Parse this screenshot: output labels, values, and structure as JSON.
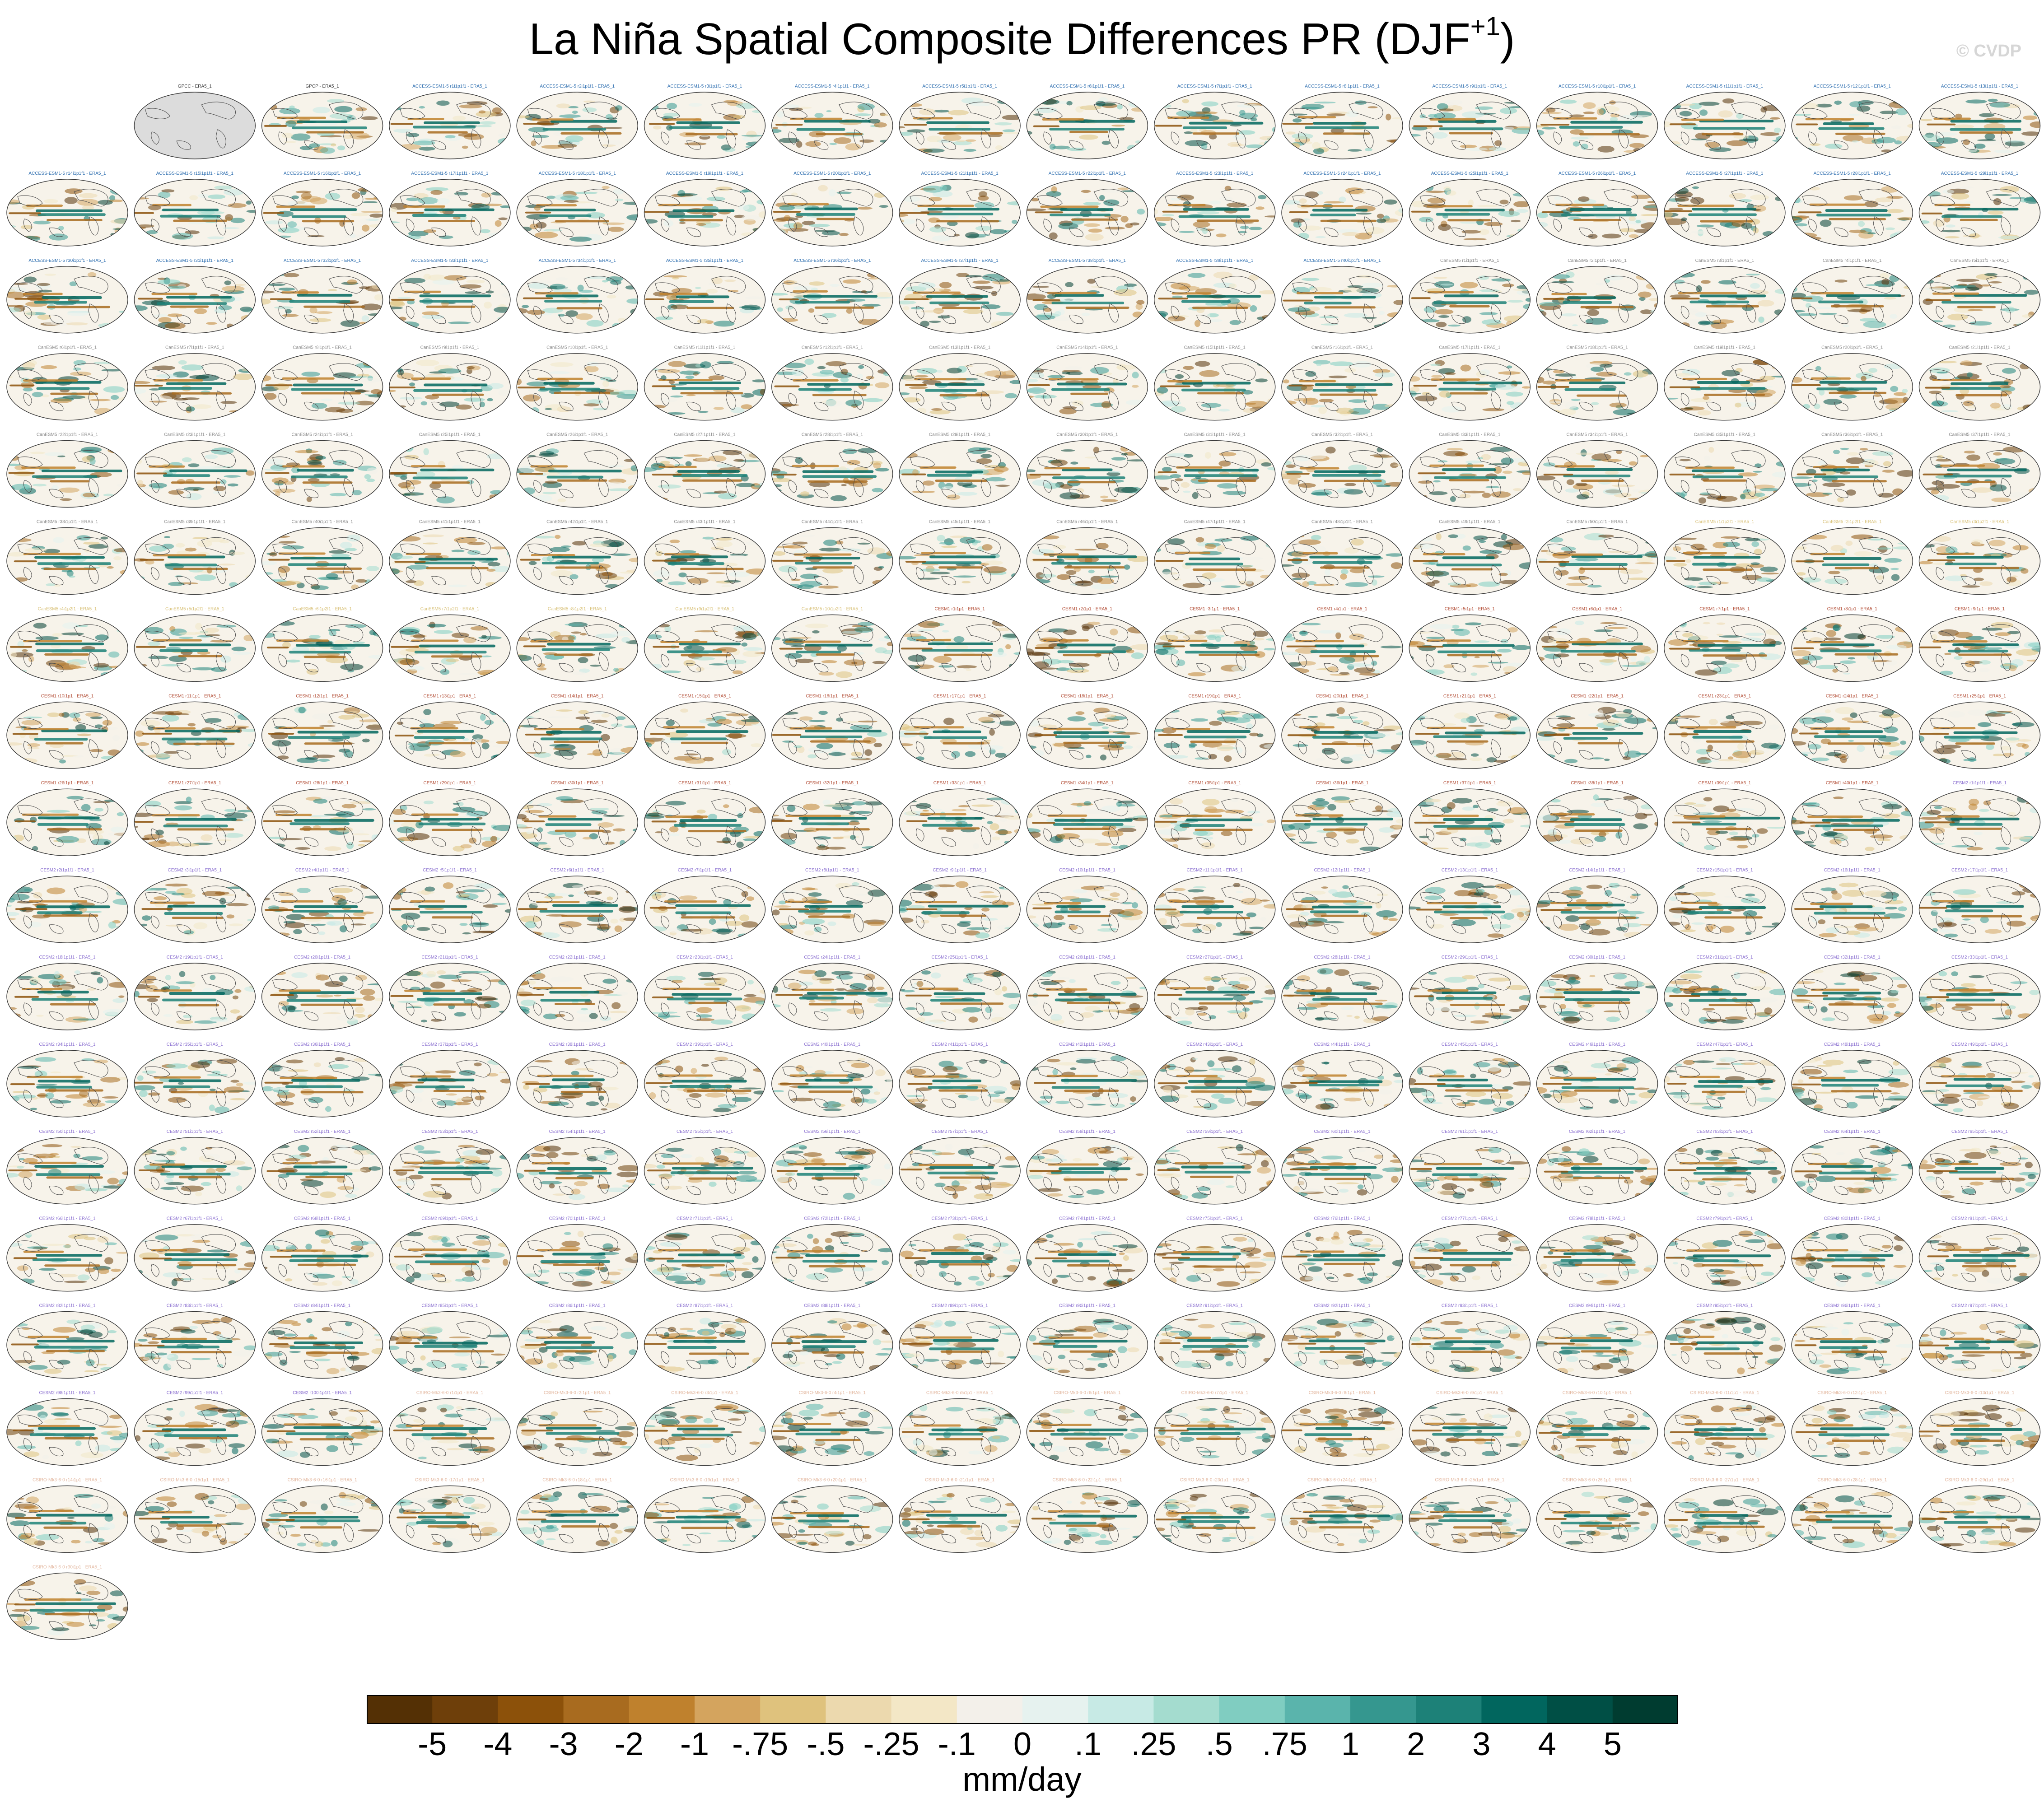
{
  "title": "La Niña Spatial Composite Differences PR (DJF",
  "title_superscript": "+1",
  "watermark": "© CVDP",
  "chart_data": {
    "type": "heatmap",
    "description_units": "mm/day",
    "panel_rows": 18,
    "panel_cols": 16,
    "panels": [
      {
        "label": "GPCC - ERA5_1",
        "group": "obs",
        "fill": "missing"
      },
      {
        "label": "GPCP - ERA5_1",
        "group": "obs"
      },
      {
        "label": "ACCESS-ESM1-5 r1i1p1f1 - ERA5_1",
        "group": "access"
      },
      {
        "label": "ACCESS-ESM1-5 r2i1p1f1 - ERA5_1",
        "group": "access"
      },
      {
        "label": "ACCESS-ESM1-5 r3i1p1f1 - ERA5_1",
        "group": "access"
      },
      {
        "label": "ACCESS-ESM1-5 r4i1p1f1 - ERA5_1",
        "group": "access"
      },
      {
        "label": "ACCESS-ESM1-5 r5i1p1f1 - ERA5_1",
        "group": "access"
      },
      {
        "label": "ACCESS-ESM1-5 r6i1p1f1 - ERA5_1",
        "group": "access"
      },
      {
        "label": "ACCESS-ESM1-5 r7i1p1f1 - ERA5_1",
        "group": "access"
      },
      {
        "label": "ACCESS-ESM1-5 r8i1p1f1 - ERA5_1",
        "group": "access"
      },
      {
        "label": "ACCESS-ESM1-5 r9i1p1f1 - ERA5_1",
        "group": "access"
      },
      {
        "label": "ACCESS-ESM1-5 r10i1p1f1 - ERA5_1",
        "group": "access"
      },
      {
        "label": "ACCESS-ESM1-5 r11i1p1f1 - ERA5_1",
        "group": "access"
      },
      {
        "label": "ACCESS-ESM1-5 r12i1p1f1 - ERA5_1",
        "group": "access"
      },
      {
        "label": "ACCESS-ESM1-5 r13i1p1f1 - ERA5_1",
        "group": "access"
      }
    ],
    "panel_groups": [
      {
        "name": "access",
        "prefix": "ACCESS-ESM1-5 r",
        "suffix": "i1p1f1 - ERA5_1",
        "start": 14,
        "end": 40,
        "color": "#2f6fb0"
      },
      {
        "name": "canesm",
        "prefix": "CanESM5 r",
        "suffix": "i1p1f1 - ERA5_1",
        "start": 1,
        "end": 50,
        "color": "#8c8c8c"
      },
      {
        "name": "canesm2",
        "prefix": "CanESM5 r",
        "suffix": "i1p2f1 - ERA5_1",
        "start": 1,
        "end": 10,
        "color": "#d9c27a"
      },
      {
        "name": "cesm1",
        "prefix": "CESM1 r",
        "suffix": "i1p1 - ERA5_1",
        "start": 1,
        "end": 40,
        "color": "#b5533c"
      },
      {
        "name": "cesm2",
        "prefix": "CESM2 r",
        "suffix": "i1p1f1 - ERA5_1",
        "start": 1,
        "end": 100,
        "color": "#8a6fd0"
      },
      {
        "name": "csiro",
        "prefix": "CSIRO-Mk3-6-0 r",
        "suffix": "i1p1 - ERA5_1",
        "start": 1,
        "end": 30,
        "color": "#e3b8a0"
      }
    ],
    "colorbar": {
      "colors": [
        "#543005",
        "#6e3f0a",
        "#8c510a",
        "#a86b1f",
        "#bf812d",
        "#d4a45e",
        "#dfc27d",
        "#ecd9ae",
        "#f3e7c6",
        "#f3f0ea",
        "#e6f2ef",
        "#c7eae5",
        "#a4dccf",
        "#80cdc1",
        "#5ab4ac",
        "#35978f",
        "#1d8178",
        "#01665e",
        "#004f45",
        "#003c30"
      ],
      "tick_labels": [
        "-5",
        "-4",
        "-3",
        "-2",
        "-1",
        "-.75",
        "-.5",
        "-.25",
        "-.1",
        "0",
        ".1",
        ".25",
        ".5",
        ".75",
        "1",
        "2",
        "3",
        "4",
        "5"
      ],
      "unit_label": "mm/day"
    }
  }
}
